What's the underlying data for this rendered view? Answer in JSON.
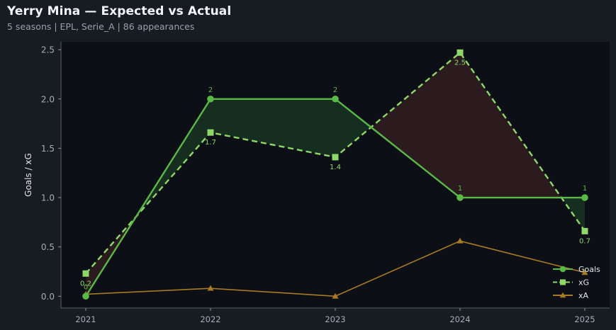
{
  "header": {
    "title": "Yerry Mina — Expected vs Actual",
    "subtitle": "5 seasons | EPL, Serie_A | 86 appearances"
  },
  "colors": {
    "background": "#171b22",
    "plot_background": "#0c0f15",
    "goals": "#5ab846",
    "xg": "#8ed86a",
    "xa": "#a77a23",
    "overperform_fill": "#173020",
    "underperform_fill": "#2d1b1f"
  },
  "chart_data": {
    "type": "line",
    "title": "Yerry Mina — Expected vs Actual",
    "xlabel": "",
    "ylabel": "Goals / xG",
    "categories": [
      "2021",
      "2022",
      "2023",
      "2024",
      "2025"
    ],
    "ylim": [
      -0.12,
      2.58
    ],
    "yticks": [
      "0.0",
      "0.5",
      "1.0",
      "1.5",
      "2.0",
      "2.5"
    ],
    "grid": false,
    "legend_position": "bottom-right",
    "series": [
      {
        "name": "Goals",
        "values": [
          0,
          2,
          2,
          1,
          1
        ],
        "labels": [
          "0",
          "2",
          "2",
          "1",
          "1"
        ],
        "style": "solid",
        "marker": "circle"
      },
      {
        "name": "xG",
        "values": [
          0.23,
          1.66,
          1.41,
          2.47,
          0.66
        ],
        "labels": [
          "0.2",
          "1.7",
          "1.4",
          "2.5",
          "0.7"
        ],
        "style": "dashed",
        "marker": "square"
      },
      {
        "name": "xA",
        "values": [
          0.02,
          0.08,
          0.0,
          0.56,
          0.24
        ],
        "style": "solid",
        "marker": "triangle"
      }
    ]
  }
}
